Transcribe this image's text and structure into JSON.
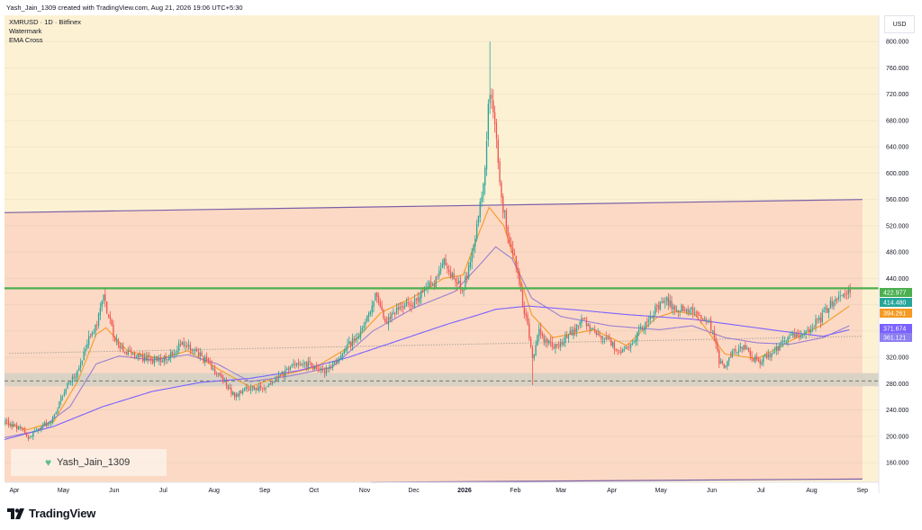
{
  "header": {
    "text": "Yash_Jain_1309 created with TradingView.com, Aug 21, 2026 19:06 UTC+5:30"
  },
  "legend": {
    "line1": "XMRUSD · 1D · Bitfinex",
    "line2": "Watermark",
    "line3": "EMA Cross"
  },
  "currency_label": "USD",
  "watermark": {
    "text": "Yash_Jain_1309",
    "icon": "heart-icon"
  },
  "brand": {
    "name": "TradingView",
    "icon": "tradingview-logo-icon"
  },
  "colors": {
    "upper_zone": "#fdf1d4",
    "channel_zone": "#fbd9c4",
    "support_zone": "#d6d0c4",
    "up_candle": "#26a69a",
    "down_candle": "#ef5350",
    "resistance_line": "#4caf50",
    "channel_line": "#7b5ea7",
    "ema_fast": "#f59a23",
    "ema_slow": "#9b7fd1",
    "sma_long": "#7b61ff"
  },
  "chart_data": {
    "type": "candlestick",
    "symbol": "XMRUSD",
    "timeframe": "1D",
    "exchange": "Bitfinex",
    "ylim": [
      130,
      840
    ],
    "y_ticks": [
      160,
      200,
      240,
      280,
      320,
      360,
      400,
      440,
      480,
      520,
      560,
      600,
      640,
      680,
      720,
      760,
      800
    ],
    "y_tick_labels": [
      "160.000",
      "200.000",
      "240.000",
      "280.000",
      "320.000",
      "360.000",
      "400.000",
      "440.000",
      "480.000",
      "520.000",
      "560.000",
      "600.000",
      "640.000",
      "680.000",
      "720.000",
      "760.000",
      "800.000"
    ],
    "x_labels": [
      {
        "label": "Apr",
        "day": 6
      },
      {
        "label": "May",
        "day": 36
      },
      {
        "label": "Jun",
        "day": 67
      },
      {
        "label": "Jul",
        "day": 97
      },
      {
        "label": "Aug",
        "day": 128
      },
      {
        "label": "Sep",
        "day": 159
      },
      {
        "label": "Oct",
        "day": 189
      },
      {
        "label": "Nov",
        "day": 220
      },
      {
        "label": "Dec",
        "day": 250
      },
      {
        "label": "2026",
        "day": 281,
        "bold": true
      },
      {
        "label": "Feb",
        "day": 312
      },
      {
        "label": "Mar",
        "day": 340
      },
      {
        "label": "Apr",
        "day": 371
      },
      {
        "label": "May",
        "day": 401
      },
      {
        "label": "Jun",
        "day": 432
      },
      {
        "label": "Jul",
        "day": 462
      },
      {
        "label": "Aug",
        "day": 493
      },
      {
        "label": "Sep",
        "day": 524
      }
    ],
    "anchors": [
      [
        0,
        222
      ],
      [
        10,
        210
      ],
      [
        14,
        195
      ],
      [
        22,
        215
      ],
      [
        28,
        222
      ],
      [
        33,
        250
      ],
      [
        38,
        280
      ],
      [
        45,
        300
      ],
      [
        50,
        345
      ],
      [
        56,
        370
      ],
      [
        60,
        412
      ],
      [
        66,
        355
      ],
      [
        72,
        330
      ],
      [
        80,
        322
      ],
      [
        90,
        315
      ],
      [
        98,
        320
      ],
      [
        108,
        340
      ],
      [
        118,
        325
      ],
      [
        126,
        305
      ],
      [
        134,
        282
      ],
      [
        140,
        260
      ],
      [
        146,
        270
      ],
      [
        152,
        274
      ],
      [
        158,
        275
      ],
      [
        165,
        285
      ],
      [
        172,
        300
      ],
      [
        180,
        315
      ],
      [
        188,
        305
      ],
      [
        196,
        300
      ],
      [
        204,
        320
      ],
      [
        212,
        345
      ],
      [
        220,
        370
      ],
      [
        226,
        415
      ],
      [
        232,
        370
      ],
      [
        240,
        395
      ],
      [
        248,
        400
      ],
      [
        255,
        420
      ],
      [
        262,
        432
      ],
      [
        268,
        465
      ],
      [
        274,
        440
      ],
      [
        280,
        425
      ],
      [
        285,
        480
      ],
      [
        288,
        520
      ],
      [
        292,
        575
      ],
      [
        295,
        700
      ],
      [
        297,
        725
      ],
      [
        299,
        680
      ],
      [
        301,
        610
      ],
      [
        303,
        560
      ],
      [
        307,
        510
      ],
      [
        311,
        470
      ],
      [
        315,
        415
      ],
      [
        318,
        380
      ],
      [
        322,
        320
      ],
      [
        326,
        360
      ],
      [
        330,
        345
      ],
      [
        336,
        335
      ],
      [
        345,
        355
      ],
      [
        352,
        375
      ],
      [
        360,
        360
      ],
      [
        368,
        345
      ],
      [
        376,
        330
      ],
      [
        382,
        340
      ],
      [
        390,
        368
      ],
      [
        398,
        395
      ],
      [
        404,
        408
      ],
      [
        410,
        390
      ],
      [
        416,
        395
      ],
      [
        422,
        385
      ],
      [
        428,
        380
      ],
      [
        432,
        360
      ],
      [
        436,
        315
      ],
      [
        440,
        305
      ],
      [
        444,
        330
      ],
      [
        450,
        338
      ],
      [
        456,
        318
      ],
      [
        462,
        315
      ],
      [
        468,
        325
      ],
      [
        474,
        340
      ],
      [
        480,
        350
      ],
      [
        486,
        358
      ],
      [
        492,
        365
      ],
      [
        498,
        380
      ],
      [
        504,
        400
      ],
      [
        508,
        412
      ],
      [
        512,
        418
      ],
      [
        516,
        420
      ]
    ],
    "series": [
      {
        "name": "EMA fast",
        "color": "#f59a23",
        "anchors": [
          [
            0,
            220
          ],
          [
            14,
            210
          ],
          [
            30,
            222
          ],
          [
            45,
            285
          ],
          [
            56,
            355
          ],
          [
            62,
            365
          ],
          [
            75,
            330
          ],
          [
            95,
            318
          ],
          [
            112,
            330
          ],
          [
            130,
            303
          ],
          [
            150,
            275
          ],
          [
            170,
            293
          ],
          [
            190,
            305
          ],
          [
            210,
            335
          ],
          [
            230,
            388
          ],
          [
            250,
            412
          ],
          [
            268,
            440
          ],
          [
            280,
            445
          ],
          [
            290,
            510
          ],
          [
            296,
            548
          ],
          [
            305,
            520
          ],
          [
            315,
            440
          ],
          [
            322,
            385
          ],
          [
            335,
            350
          ],
          [
            360,
            362
          ],
          [
            380,
            338
          ],
          [
            398,
            380
          ],
          [
            410,
            390
          ],
          [
            422,
            385
          ],
          [
            440,
            325
          ],
          [
            460,
            318
          ],
          [
            480,
            345
          ],
          [
            500,
            370
          ],
          [
            516,
            398
          ]
        ]
      },
      {
        "name": "EMA slow",
        "color": "#9b7fd1",
        "anchors": [
          [
            0,
            198
          ],
          [
            20,
            208
          ],
          [
            40,
            245
          ],
          [
            56,
            310
          ],
          [
            70,
            322
          ],
          [
            90,
            316
          ],
          [
            112,
            324
          ],
          [
            130,
            310
          ],
          [
            150,
            283
          ],
          [
            175,
            292
          ],
          [
            200,
            305
          ],
          [
            225,
            360
          ],
          [
            250,
            395
          ],
          [
            275,
            420
          ],
          [
            290,
            460
          ],
          [
            300,
            488
          ],
          [
            310,
            470
          ],
          [
            322,
            410
          ],
          [
            340,
            382
          ],
          [
            370,
            368
          ],
          [
            400,
            362
          ],
          [
            420,
            368
          ],
          [
            440,
            350
          ],
          [
            460,
            342
          ],
          [
            480,
            340
          ],
          [
            500,
            350
          ],
          [
            516,
            368
          ]
        ]
      },
      {
        "name": "SMA long",
        "color": "#7b61ff",
        "anchors": [
          [
            0,
            195
          ],
          [
            30,
            215
          ],
          [
            60,
            245
          ],
          [
            90,
            268
          ],
          [
            120,
            282
          ],
          [
            150,
            288
          ],
          [
            180,
            300
          ],
          [
            210,
            320
          ],
          [
            240,
            345
          ],
          [
            270,
            370
          ],
          [
            290,
            385
          ],
          [
            300,
            393
          ],
          [
            320,
            398
          ],
          [
            350,
            392
          ],
          [
            380,
            385
          ],
          [
            420,
            378
          ],
          [
            450,
            368
          ],
          [
            480,
            358
          ],
          [
            500,
            352
          ],
          [
            516,
            362
          ]
        ]
      }
    ],
    "levels": {
      "resistance": 425,
      "support_zone": [
        276,
        296
      ],
      "support_dashed": 284,
      "dotted_line_start": [
        3,
        326
      ],
      "dotted_line_end": [
        524,
        352
      ],
      "channel_top_start": [
        0,
        540
      ],
      "channel_top_end": [
        524,
        560
      ],
      "channel_bottom_start": [
        224,
        130
      ],
      "channel_bottom_end": [
        524,
        135
      ]
    },
    "price_labels": [
      {
        "value": "422.977",
        "price": 422.977,
        "color": "#4caf50",
        "text_color": "#ffffff"
      },
      {
        "value": "414.480",
        "price": 414.48,
        "color": "#26a69a",
        "text_color": "#ffffff"
      },
      {
        "value": "394.261",
        "price": 394.261,
        "color": "#f59a23",
        "text_color": "#ffffff"
      },
      {
        "value": "371.674",
        "price": 371.674,
        "color": "#7b61ff",
        "text_color": "#ffffff"
      },
      {
        "value": "361.121",
        "price": 361.121,
        "color": "#8c7ff0",
        "text_color": "#ffffff"
      }
    ]
  }
}
